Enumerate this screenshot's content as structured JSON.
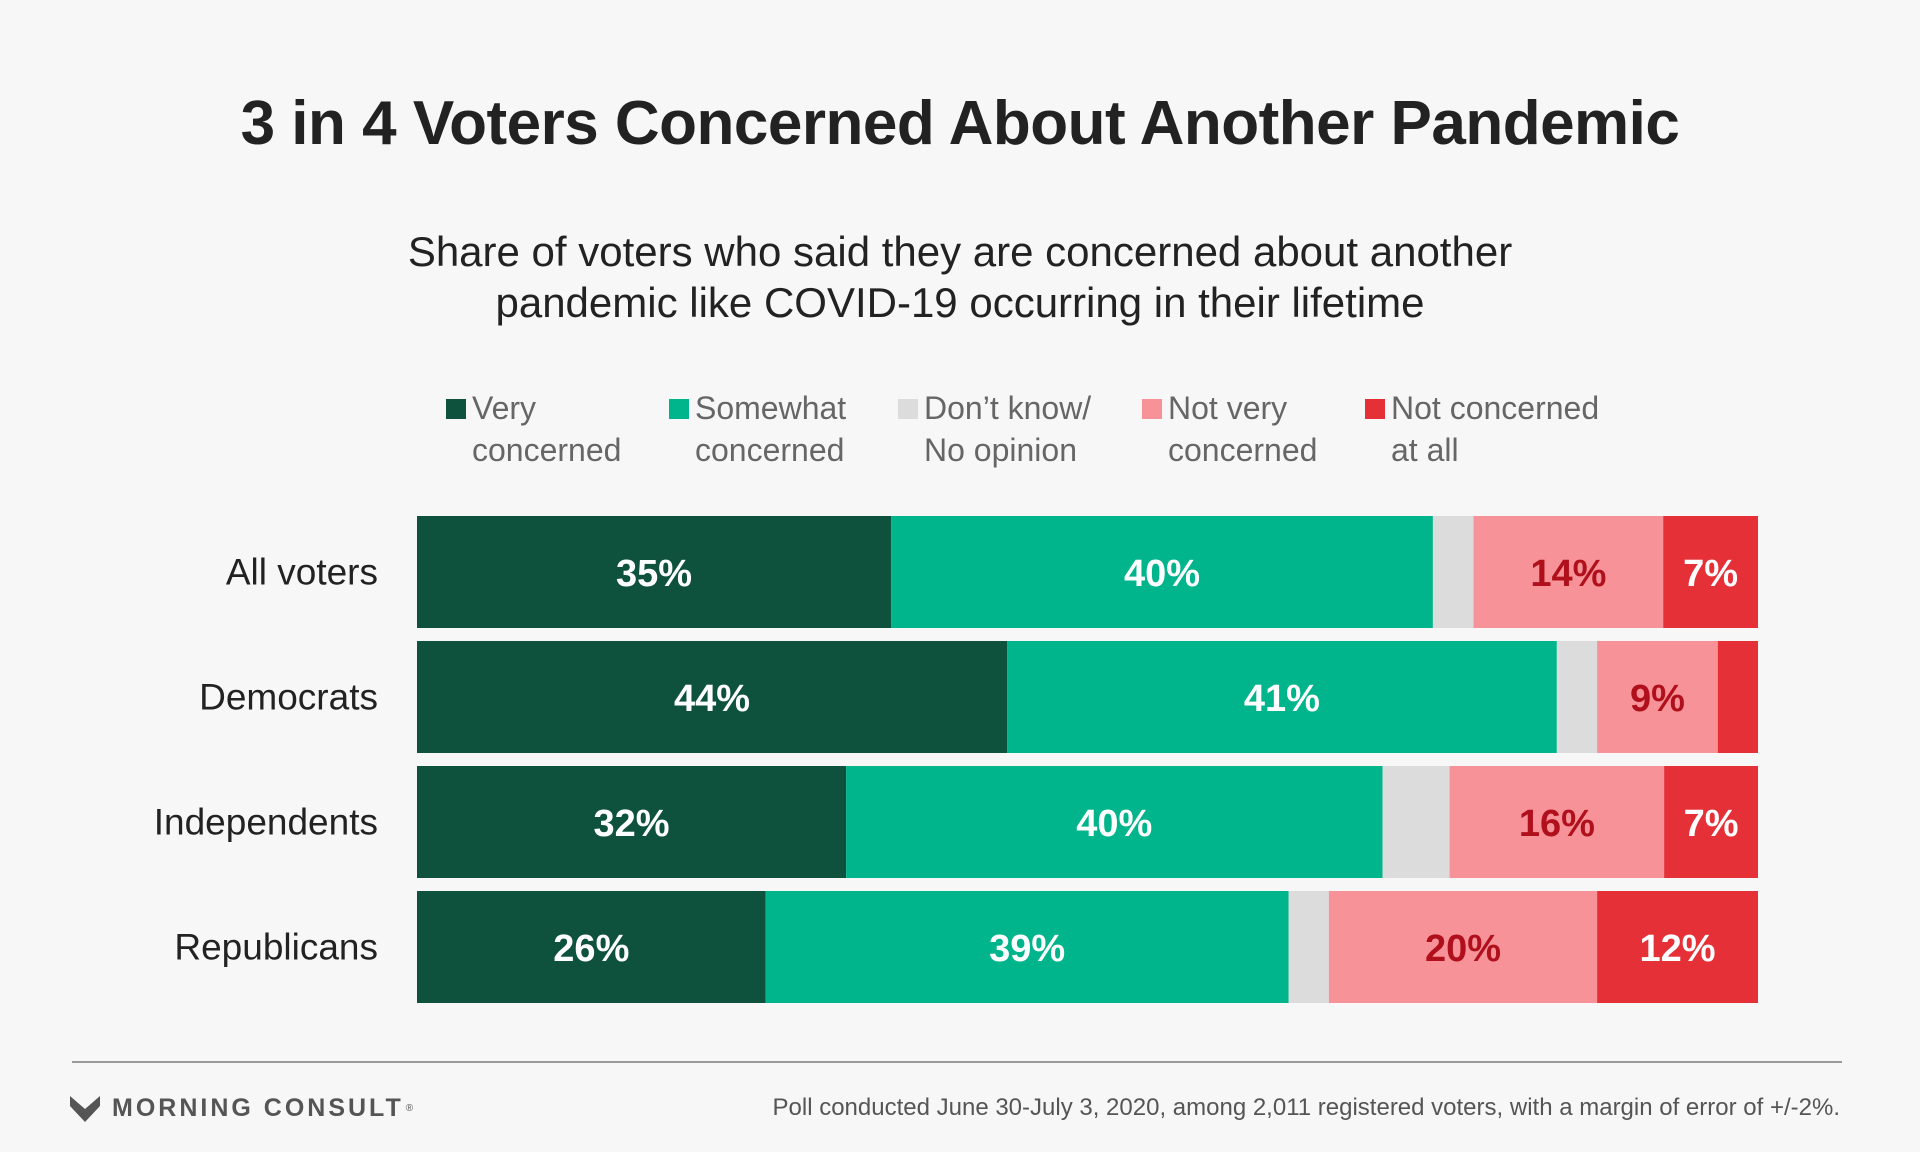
{
  "header": {
    "title": "3 in 4 Voters Concerned About Another Pandemic",
    "subtitle": "Share of voters who said they are concerned about another\npandemic like COVID-19 occurring in their lifetime"
  },
  "legend": {
    "items": [
      {
        "label": "Very\nconcerned",
        "color": "#0e523d"
      },
      {
        "label": "Somewhat\nconcerned",
        "color": "#00b48c"
      },
      {
        "label": "Don’t know/\nNo opinion",
        "color": "#dcdcdc"
      },
      {
        "label": "Not very\nconcerned",
        "color": "#f79398"
      },
      {
        "label": "Not concerned\nat all",
        "color": "#e63038"
      }
    ]
  },
  "chart_data": {
    "type": "bar",
    "orientation": "horizontal",
    "stacked": true,
    "categories": [
      "All voters",
      "Democrats",
      "Independents",
      "Republicans"
    ],
    "series": [
      {
        "name": "Very concerned",
        "values": [
          35,
          44,
          32,
          26
        ],
        "labels": [
          "35%",
          "44%",
          "32%",
          "26%"
        ],
        "color": "#0e523d",
        "label_color": "#ffffff"
      },
      {
        "name": "Somewhat concerned",
        "values": [
          40,
          41,
          40,
          39
        ],
        "labels": [
          "40%",
          "41%",
          "40%",
          "39%"
        ],
        "color": "#00b48c",
        "label_color": "#ffffff"
      },
      {
        "name": "Don’t know/No opinion",
        "values": [
          3,
          3,
          5,
          3
        ],
        "labels": [
          "",
          "",
          "",
          ""
        ],
        "color": "#dcdcdc",
        "label_color": "#ffffff"
      },
      {
        "name": "Not very concerned",
        "values": [
          14,
          9,
          16,
          20
        ],
        "labels": [
          "14%",
          "9%",
          "16%",
          "20%"
        ],
        "color": "#f79398",
        "label_color": "#b0101c"
      },
      {
        "name": "Not concerned at all",
        "values": [
          7,
          3,
          7,
          12
        ],
        "labels": [
          "7%",
          "",
          "7%",
          "12%"
        ],
        "color": "#e63038",
        "label_color": "#ffffff"
      }
    ],
    "xlim": [
      0,
      100
    ],
    "grid": false,
    "legend_position": "top"
  },
  "footer": {
    "brand": "MORNING CONSULT",
    "brand_mark": "®",
    "logo_icon": "morning-consult-logo-icon",
    "note": "Poll conducted June 30-July 3, 2020, among 2,011 registered voters, with a margin of error of +/-2%."
  }
}
